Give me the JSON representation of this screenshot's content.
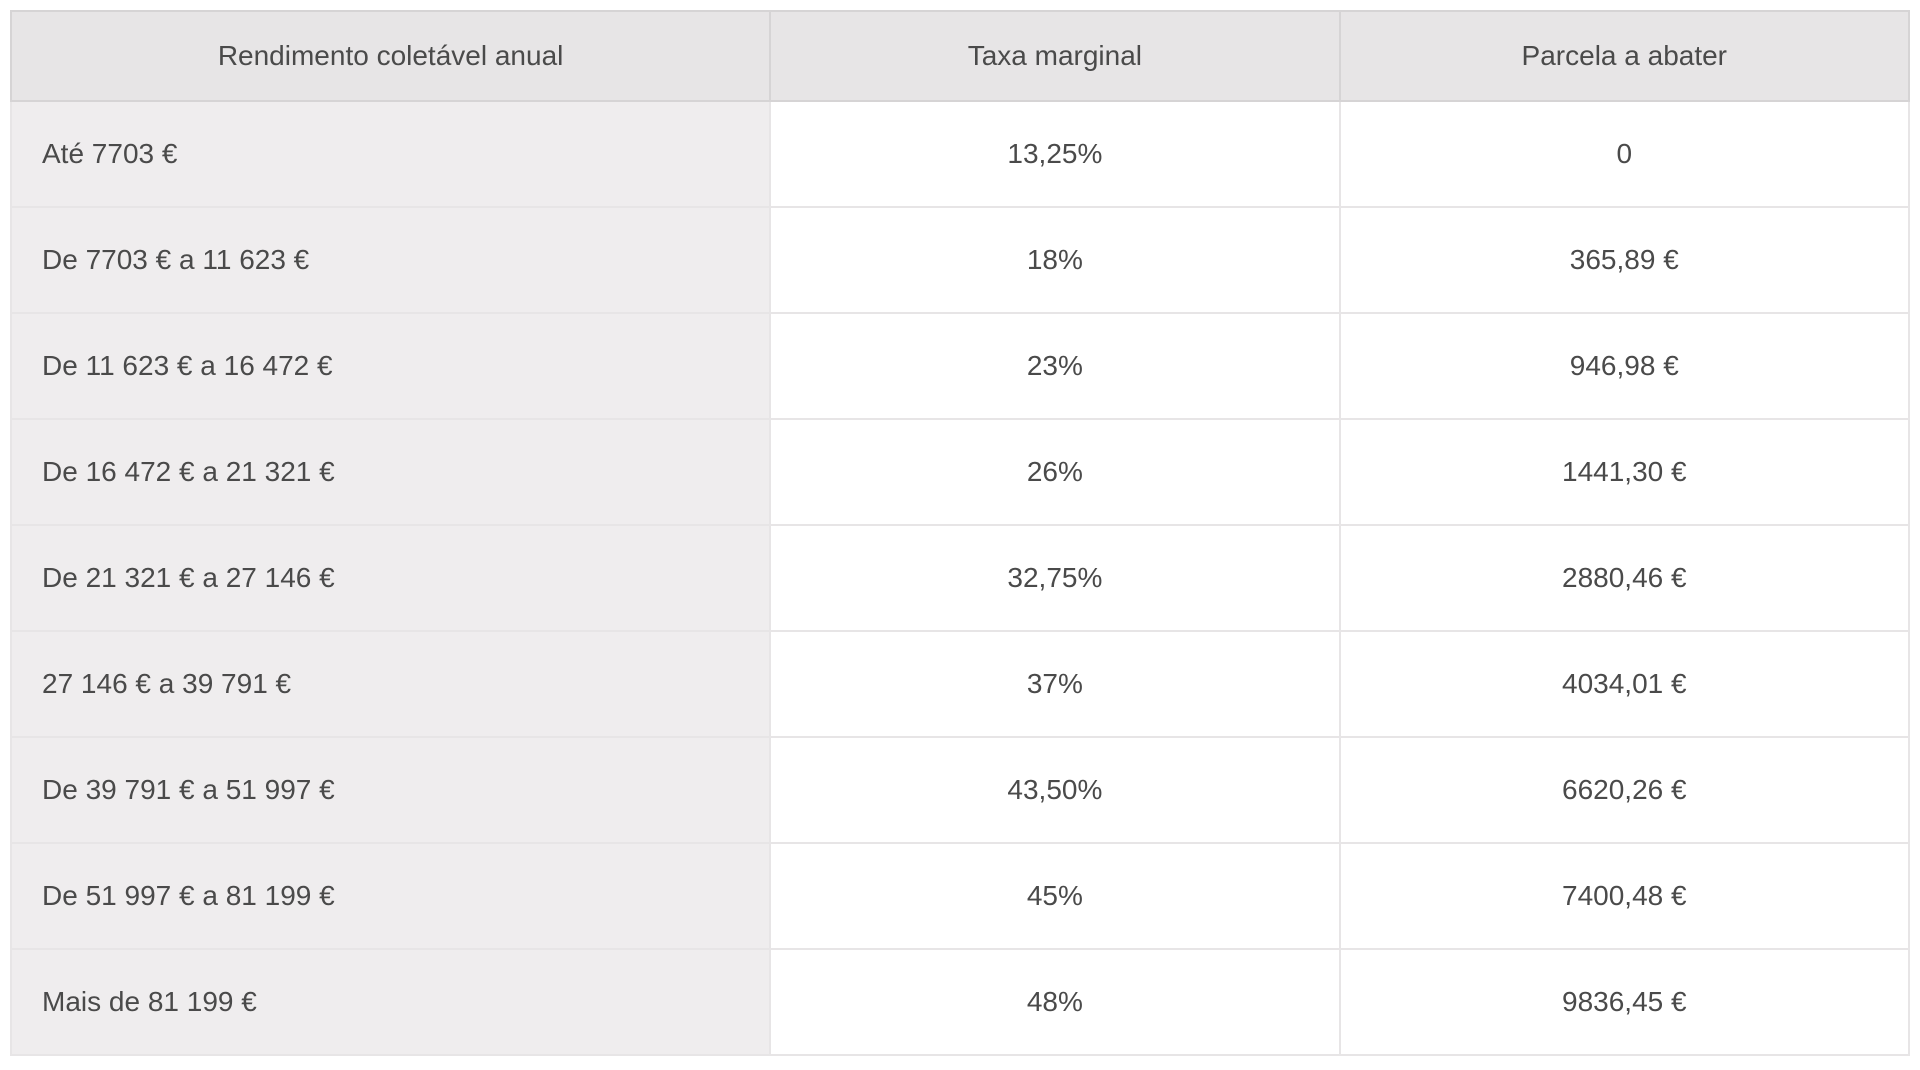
{
  "table": {
    "type": "table",
    "columns": [
      "Rendimento coletável anual",
      "Taxa marginal",
      "Parcela a abater"
    ],
    "rows": [
      [
        "Até 7703 €",
        "13,25%",
        "0"
      ],
      [
        "De 7703 € a 11 623 €",
        "18%",
        "365,89 €"
      ],
      [
        "De 11 623 € a 16 472 €",
        "23%",
        "946,98 €"
      ],
      [
        "De 16 472 € a 21 321 €",
        "26%",
        "1441,30 €"
      ],
      [
        "De 21 321 € a 27 146 €",
        "32,75%",
        "2880,46 €"
      ],
      [
        "27 146 € a 39 791 €",
        "37%",
        "4034,01 €"
      ],
      [
        "De 39 791 € a 51 997 €",
        "43,50%",
        "6620,26 €"
      ],
      [
        "De 51 997 € a 81 199 €",
        "45%",
        "7400,48 €"
      ],
      [
        "Mais de 81 199 €",
        "48%",
        "9836,45 €"
      ]
    ],
    "header_bg_color": "#e7e5e6",
    "first_col_bg_color": "#efedee",
    "data_bg_color": "#ffffff",
    "border_color": "#e7e5e6",
    "text_color": "#4a4a4a",
    "font_size": 28,
    "column_widths": [
      "40%",
      "30%",
      "30%"
    ],
    "column_alignment": [
      "left",
      "center",
      "center"
    ]
  }
}
